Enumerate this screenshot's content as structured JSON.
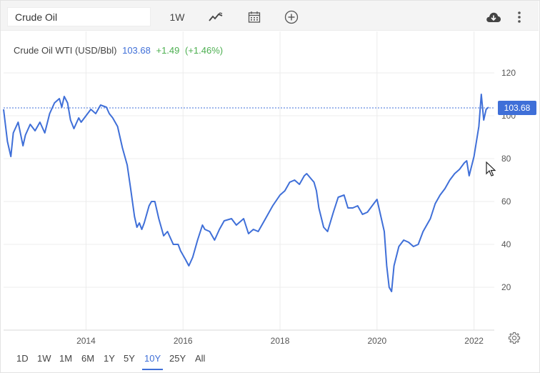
{
  "toolbar": {
    "symbol_value": "Crude Oil",
    "interval_label": "1W",
    "icons": [
      "line-chart-icon",
      "calendar-icon",
      "plus-circle-icon",
      "cloud-download-icon",
      "more-vertical-icon"
    ]
  },
  "quote": {
    "name": "Crude Oil WTI (USD/Bbl)",
    "price": "103.68",
    "change": "+1.49",
    "change_pct": "(+1.46%)",
    "price_tag": "103.68"
  },
  "range_buttons": [
    "1D",
    "1W",
    "1M",
    "6M",
    "1Y",
    "5Y",
    "10Y",
    "25Y",
    "All"
  ],
  "active_range": "10Y",
  "colors": {
    "line": "#3f6fd8",
    "positive": "#4caf50",
    "price_tag_bg": "#3f6fd8",
    "grid": "#ececec"
  },
  "chart_data": {
    "type": "line",
    "title": "Crude Oil WTI (USD/Bbl)",
    "y_ticks": [
      "120",
      "100",
      "80",
      "60",
      "40",
      "20"
    ],
    "ylim": [
      0,
      120
    ],
    "x_ticks": [
      "2014",
      "2016",
      "2018",
      "2020",
      "2022"
    ],
    "xlim": [
      2012.3,
      2022.3
    ],
    "grid": true,
    "last_price_line": 103.68,
    "series": [
      {
        "x": [
          2012.3,
          2012.38,
          2012.45,
          2012.5,
          2012.6,
          2012.7,
          2012.75,
          2012.85,
          2012.95,
          2013.05,
          2013.15,
          2013.25,
          2013.35,
          2013.45,
          2013.5,
          2013.55,
          2013.62,
          2013.68,
          2013.75,
          2013.85,
          2013.9,
          2014.0,
          2014.1,
          2014.2,
          2014.3,
          2014.42,
          2014.48,
          2014.55,
          2014.65,
          2014.75,
          2014.85,
          2014.92,
          2015.0,
          2015.05,
          2015.1,
          2015.15,
          2015.2,
          2015.3,
          2015.35,
          2015.42,
          2015.5,
          2015.6,
          2015.68,
          2015.8,
          2015.9,
          2015.95,
          2016.05,
          2016.12,
          2016.2,
          2016.3,
          2016.4,
          2016.45,
          2016.55,
          2016.65,
          2016.75,
          2016.85,
          2017.0,
          2017.1,
          2017.25,
          2017.35,
          2017.45,
          2017.55,
          2017.7,
          2017.85,
          2018.0,
          2018.1,
          2018.2,
          2018.3,
          2018.4,
          2018.5,
          2018.55,
          2018.7,
          2018.75,
          2018.8,
          2018.9,
          2018.98,
          2019.1,
          2019.2,
          2019.32,
          2019.4,
          2019.5,
          2019.6,
          2019.7,
          2019.8,
          2019.9,
          2020.0,
          2020.05,
          2020.1,
          2020.15,
          2020.2,
          2020.25,
          2020.3,
          2020.35,
          2020.45,
          2020.55,
          2020.65,
          2020.75,
          2020.85,
          2020.95,
          2021.1,
          2021.2,
          2021.3,
          2021.4,
          2021.5,
          2021.6,
          2021.7,
          2021.8,
          2021.85,
          2021.9,
          2022.0,
          2022.05,
          2022.1,
          2022.15,
          2022.2,
          2022.25,
          2022.3
        ],
        "y": [
          103,
          88,
          81,
          92,
          97,
          86,
          91,
          96,
          93,
          97,
          92,
          101,
          106,
          108,
          104,
          109,
          106,
          98,
          94,
          99,
          97,
          100,
          103,
          101,
          105,
          104,
          101,
          99,
          95,
          85,
          77,
          66,
          53,
          48,
          50,
          47,
          50,
          58,
          60,
          60,
          52,
          44,
          46,
          40,
          40,
          37,
          33,
          30,
          34,
          42,
          49,
          47,
          46,
          42,
          47,
          51,
          52,
          49,
          52,
          45,
          47,
          46,
          52,
          58,
          63,
          65,
          69,
          70,
          68,
          72,
          73,
          69,
          65,
          57,
          48,
          46,
          55,
          62,
          63,
          57,
          57,
          58,
          54,
          55,
          58,
          61,
          56,
          51,
          46,
          30,
          20,
          18,
          30,
          39,
          42,
          41,
          39,
          40,
          46,
          52,
          59,
          63,
          66,
          70,
          73,
          75,
          78,
          79,
          72,
          81,
          88,
          95,
          110,
          98,
          103,
          104
        ]
      }
    ]
  }
}
